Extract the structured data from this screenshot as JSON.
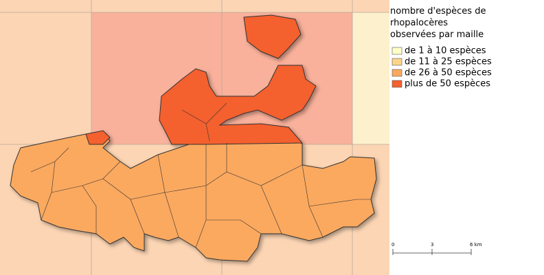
{
  "legend": {
    "title_lines": [
      "nombre d'espèces de",
      "rhopalocères",
      "observées par maille"
    ],
    "items": [
      {
        "label": "de 1 à 10 espèces",
        "color": "#ffffc8"
      },
      {
        "label": "de 11 à 25 espèces",
        "color": "#fdd58a"
      },
      {
        "label": "de 26 à 50 espèces",
        "color": "#f9a95f"
      },
      {
        "label": "plus de 50 espèces",
        "color": "#f4602e"
      }
    ]
  },
  "scale": {
    "labels": [
      "0",
      "3",
      "6 km"
    ]
  }
}
